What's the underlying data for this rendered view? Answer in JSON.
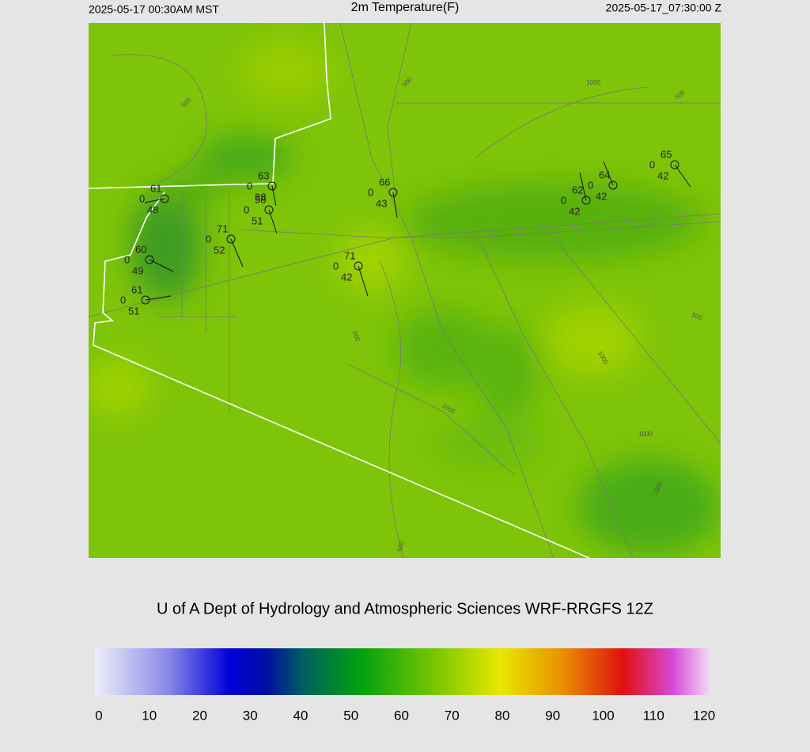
{
  "header": {
    "local_time": "2025-05-17 00:30AM MST",
    "title": "2m Temperature(F)",
    "utc_time": "2025-05-17_07:30:00 Z"
  },
  "stations": [
    {
      "temperature": 61,
      "center_value": 0,
      "dewpoint": 48
    },
    {
      "temperature": 63,
      "center_value": 0,
      "dewpoint": 38
    },
    {
      "temperature": 58,
      "center_value": 0,
      "dewpoint": 51
    },
    {
      "temperature": 71,
      "center_value": 0,
      "dewpoint": 52
    },
    {
      "temperature": 60,
      "center_value": 0,
      "dewpoint": 49
    },
    {
      "temperature": 61,
      "center_value": 0,
      "dewpoint": 51
    },
    {
      "temperature": 66,
      "center_value": 0,
      "dewpoint": 43
    },
    {
      "temperature": 71,
      "center_value": 0,
      "dewpoint": 42
    },
    {
      "temperature": 62,
      "center_value": 0,
      "dewpoint": 42
    },
    {
      "temperature": 64,
      "center_value": 0,
      "dewpoint": 42
    },
    {
      "temperature": 65,
      "center_value": 0,
      "dewpoint": 42
    }
  ],
  "contour_labels": [
    500,
    500,
    1000,
    500,
    500,
    1000,
    1000,
    500,
    1000,
    1500,
    500
  ],
  "footer": "U of A Dept of Hydrology and Atmospheric Sciences WRF-RRGFS 12Z",
  "colorbar": {
    "ticks": [
      0,
      10,
      20,
      30,
      40,
      50,
      60,
      70,
      80,
      90,
      100,
      110,
      120
    ]
  }
}
